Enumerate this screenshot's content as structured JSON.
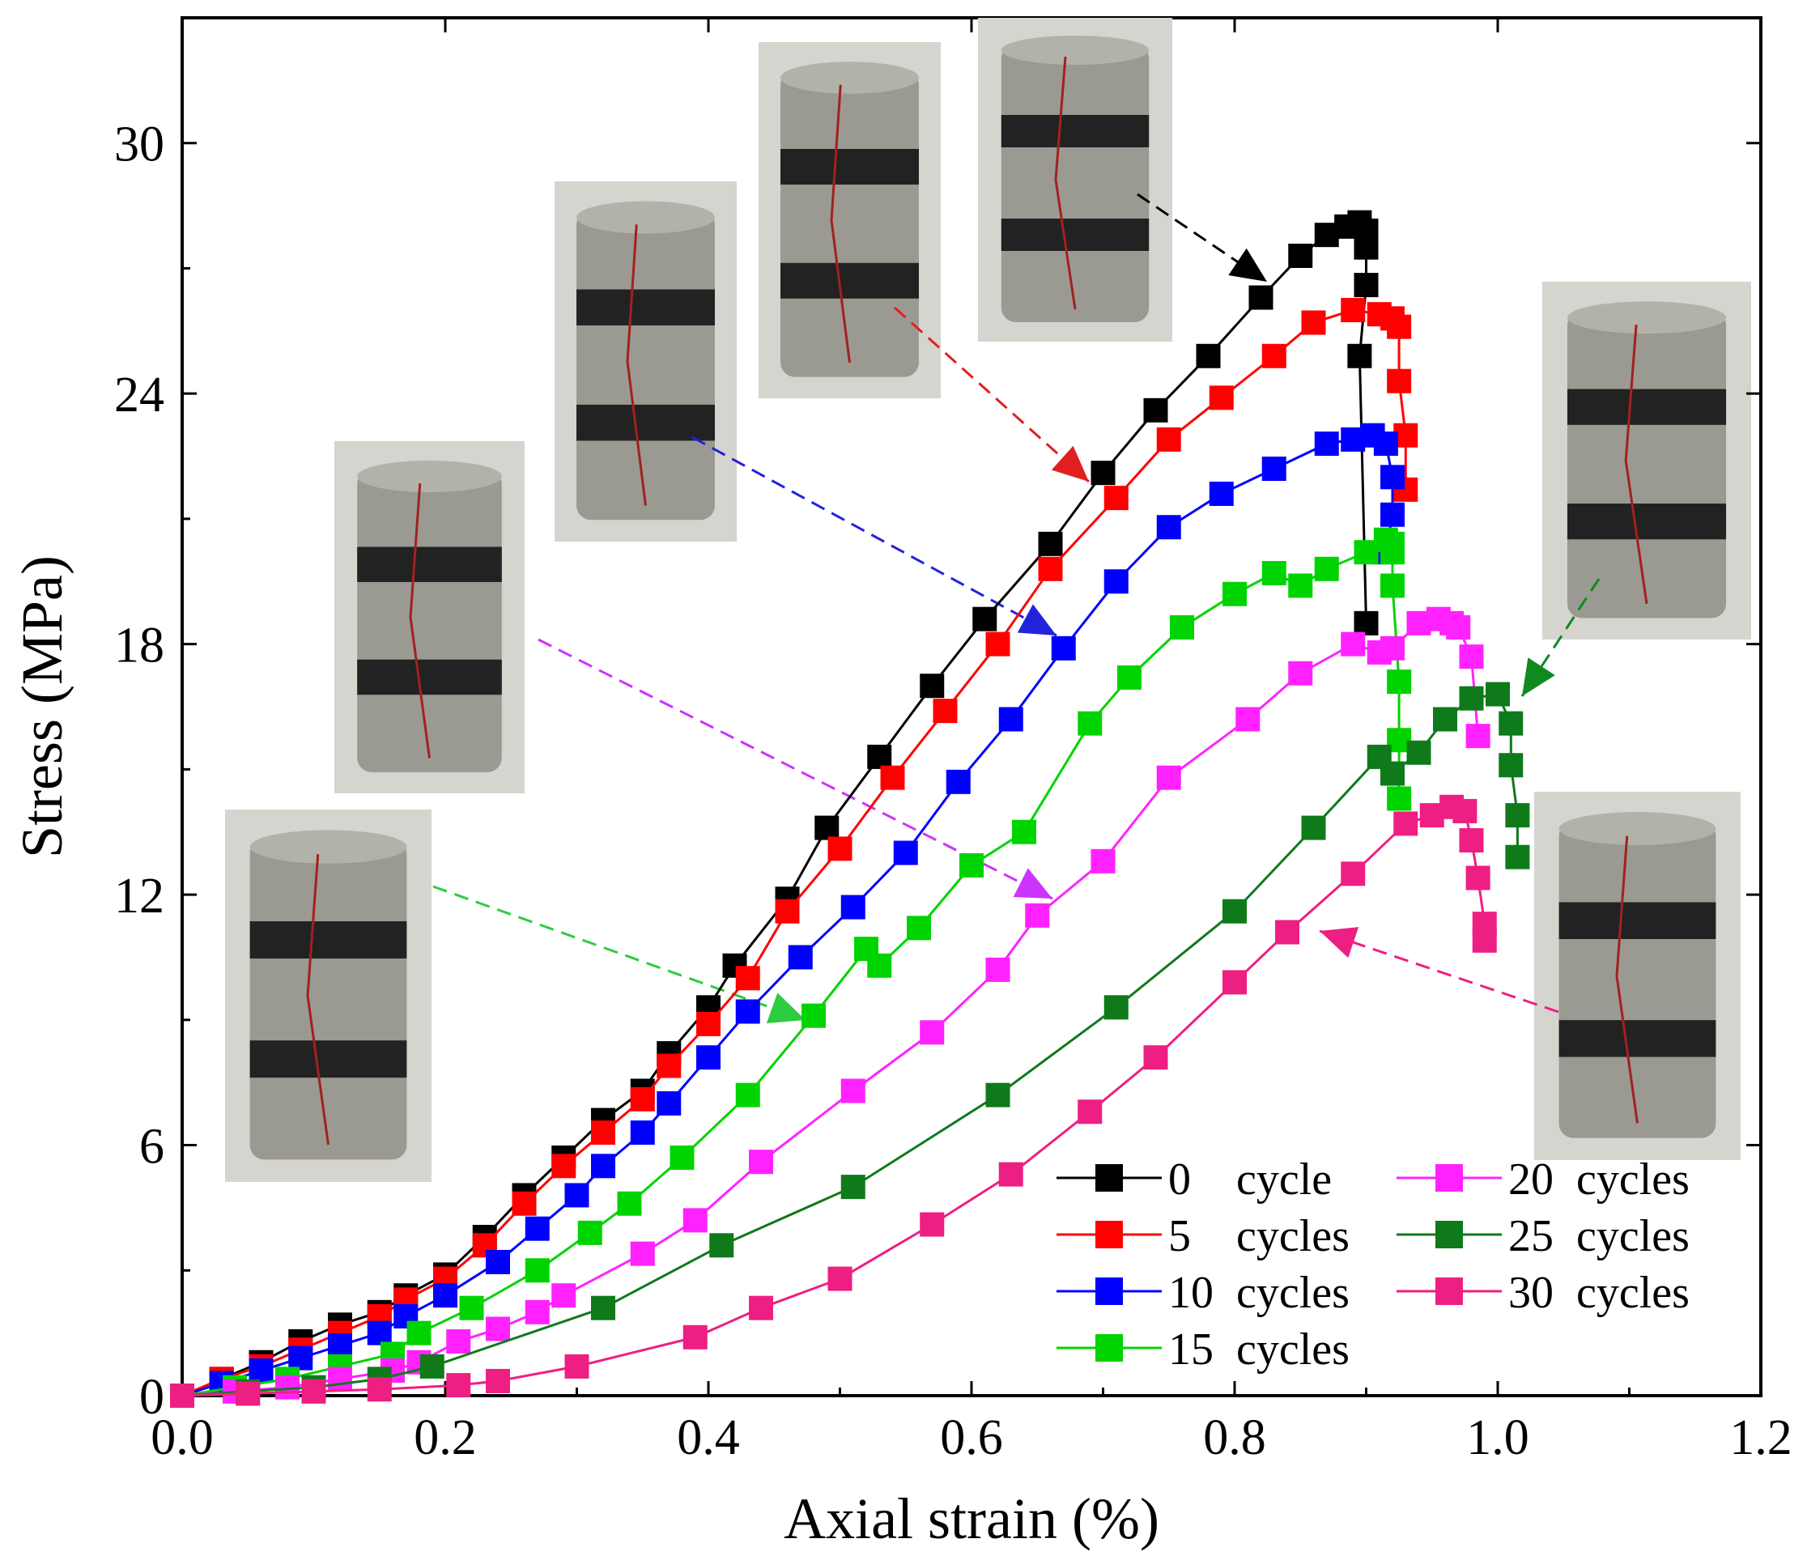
{
  "chart_data": {
    "type": "line",
    "title": "",
    "xlabel": "Axial strain (%)",
    "ylabel": "Stress (MPa)",
    "xlim": [
      0,
      1.2
    ],
    "ylim": [
      0,
      33
    ],
    "xticks": [
      0.0,
      0.2,
      0.4,
      0.6,
      0.8,
      1.0,
      1.2
    ],
    "xtick_labels": [
      "0.0",
      "0.2",
      "0.4",
      "0.6",
      "0.8",
      "1.0",
      "1.2"
    ],
    "yticks": [
      0,
      6,
      12,
      18,
      24,
      30
    ],
    "ytick_labels": [
      "0",
      "6",
      "12",
      "18",
      "24",
      "30"
    ],
    "legend_position": "bottom-right",
    "marker": "square",
    "series": [
      {
        "name": "0 cycle",
        "legend_num": "0",
        "legend_unit": "cycle",
        "color": "#000000",
        "x": [
          0.0,
          0.03,
          0.06,
          0.09,
          0.12,
          0.15,
          0.17,
          0.2,
          0.23,
          0.26,
          0.29,
          0.32,
          0.35,
          0.37,
          0.4,
          0.42,
          0.46,
          0.49,
          0.53,
          0.57,
          0.61,
          0.66,
          0.7,
          0.74,
          0.78,
          0.82,
          0.85,
          0.87,
          0.885,
          0.895,
          0.9,
          0.9,
          0.9,
          0.895,
          0.9
        ],
        "y": [
          0.0,
          0.4,
          0.8,
          1.3,
          1.7,
          2.0,
          2.4,
          2.9,
          3.8,
          4.8,
          5.7,
          6.6,
          7.3,
          8.2,
          9.3,
          10.3,
          11.9,
          13.6,
          15.3,
          17.0,
          18.6,
          20.4,
          22.1,
          23.6,
          24.9,
          26.3,
          27.3,
          27.8,
          28.0,
          28.1,
          27.9,
          27.5,
          26.6,
          24.9,
          18.5
        ]
      },
      {
        "name": "5 cycles",
        "legend_num": "5",
        "legend_unit": "cycles",
        "color": "#ff0000",
        "x": [
          0.0,
          0.03,
          0.06,
          0.09,
          0.12,
          0.15,
          0.17,
          0.2,
          0.23,
          0.26,
          0.29,
          0.32,
          0.35,
          0.37,
          0.4,
          0.43,
          0.46,
          0.5,
          0.54,
          0.58,
          0.62,
          0.66,
          0.71,
          0.75,
          0.79,
          0.83,
          0.86,
          0.89,
          0.91,
          0.92,
          0.925,
          0.925,
          0.93,
          0.93
        ],
        "y": [
          0.0,
          0.4,
          0.7,
          1.1,
          1.5,
          1.9,
          2.3,
          2.8,
          3.6,
          4.6,
          5.5,
          6.3,
          7.1,
          7.9,
          8.9,
          10.0,
          11.6,
          13.1,
          14.8,
          16.4,
          18.0,
          19.8,
          21.5,
          22.9,
          23.9,
          24.9,
          25.7,
          26.0,
          25.9,
          25.8,
          25.6,
          24.3,
          23.0,
          21.7
        ]
      },
      {
        "name": "10 cycles",
        "legend_num": "10",
        "legend_unit": "cycles",
        "color": "#0000ff",
        "x": [
          0.0,
          0.03,
          0.06,
          0.09,
          0.12,
          0.15,
          0.17,
          0.2,
          0.24,
          0.27,
          0.3,
          0.32,
          0.35,
          0.37,
          0.4,
          0.43,
          0.47,
          0.51,
          0.55,
          0.59,
          0.63,
          0.67,
          0.71,
          0.75,
          0.79,
          0.83,
          0.87,
          0.89,
          0.905,
          0.915,
          0.92,
          0.92,
          0.915
        ],
        "y": [
          0.0,
          0.3,
          0.6,
          0.9,
          1.2,
          1.5,
          1.9,
          2.4,
          3.2,
          4.0,
          4.8,
          5.5,
          6.3,
          7.0,
          8.1,
          9.2,
          10.5,
          11.7,
          13.0,
          14.7,
          16.2,
          17.9,
          19.5,
          20.8,
          21.6,
          22.2,
          22.8,
          22.9,
          23.0,
          22.8,
          22.0,
          21.1,
          20.2
        ]
      },
      {
        "name": "15 cycles",
        "legend_num": "15",
        "legend_unit": "cycles",
        "color": "#00d400",
        "x": [
          0.0,
          0.04,
          0.08,
          0.12,
          0.16,
          0.18,
          0.22,
          0.27,
          0.31,
          0.34,
          0.38,
          0.43,
          0.48,
          0.52,
          0.53,
          0.56,
          0.6,
          0.64,
          0.69,
          0.72,
          0.76,
          0.8,
          0.83,
          0.85,
          0.87,
          0.9,
          0.915,
          0.92,
          0.92,
          0.92,
          0.925,
          0.925,
          0.925
        ],
        "y": [
          0.0,
          0.2,
          0.4,
          0.7,
          1.0,
          1.5,
          2.1,
          3.0,
          3.9,
          4.6,
          5.7,
          7.2,
          9.1,
          10.7,
          10.3,
          11.2,
          12.7,
          13.5,
          16.1,
          17.2,
          18.4,
          19.2,
          19.7,
          19.4,
          19.8,
          20.2,
          20.5,
          20.4,
          20.2,
          19.4,
          17.1,
          15.7,
          14.3
        ]
      },
      {
        "name": "20 cycles",
        "legend_num": "20",
        "legend_unit": "cycles",
        "color": "#ff22ff",
        "x": [
          0.0,
          0.04,
          0.08,
          0.12,
          0.16,
          0.18,
          0.21,
          0.24,
          0.27,
          0.29,
          0.35,
          0.39,
          0.44,
          0.51,
          0.57,
          0.62,
          0.65,
          0.7,
          0.75,
          0.81,
          0.85,
          0.89,
          0.91,
          0.92,
          0.94,
          0.955,
          0.965,
          0.97,
          0.98,
          0.985
        ],
        "y": [
          0.0,
          0.1,
          0.2,
          0.4,
          0.6,
          0.8,
          1.3,
          1.6,
          2.0,
          2.4,
          3.4,
          4.2,
          5.6,
          7.3,
          8.7,
          10.2,
          11.5,
          12.8,
          14.8,
          16.2,
          17.3,
          18.0,
          17.8,
          17.9,
          18.5,
          18.6,
          18.5,
          18.4,
          17.7,
          15.8
        ]
      },
      {
        "name": "25 cycles",
        "legend_num": "25",
        "legend_unit": "cycles",
        "color": "#0e7a1a",
        "x": [
          0.0,
          0.05,
          0.1,
          0.15,
          0.19,
          0.32,
          0.41,
          0.51,
          0.62,
          0.71,
          0.8,
          0.86,
          0.91,
          0.92,
          0.94,
          0.96,
          0.98,
          1.0,
          1.01,
          1.01,
          1.015,
          1.015
        ],
        "y": [
          0.0,
          0.1,
          0.2,
          0.4,
          0.7,
          2.1,
          3.6,
          5.0,
          7.2,
          9.3,
          11.6,
          13.6,
          15.3,
          14.9,
          15.4,
          16.2,
          16.7,
          16.8,
          16.1,
          15.1,
          13.9,
          12.9
        ]
      },
      {
        "name": "30 cycles",
        "legend_num": "30",
        "legend_unit": "cycles",
        "color": "#ee1f82",
        "x": [
          0.0,
          0.05,
          0.1,
          0.15,
          0.21,
          0.24,
          0.3,
          0.39,
          0.44,
          0.5,
          0.57,
          0.63,
          0.69,
          0.74,
          0.8,
          0.84,
          0.89,
          0.93,
          0.95,
          0.965,
          0.975,
          0.98,
          0.985,
          0.99,
          0.99
        ],
        "y": [
          0.0,
          0.05,
          0.1,
          0.15,
          0.25,
          0.35,
          0.7,
          1.4,
          2.1,
          2.8,
          4.1,
          5.3,
          6.8,
          8.1,
          9.9,
          11.1,
          12.5,
          13.7,
          13.9,
          14.1,
          14.0,
          13.3,
          12.4,
          11.3,
          10.9
        ]
      }
    ]
  }
}
